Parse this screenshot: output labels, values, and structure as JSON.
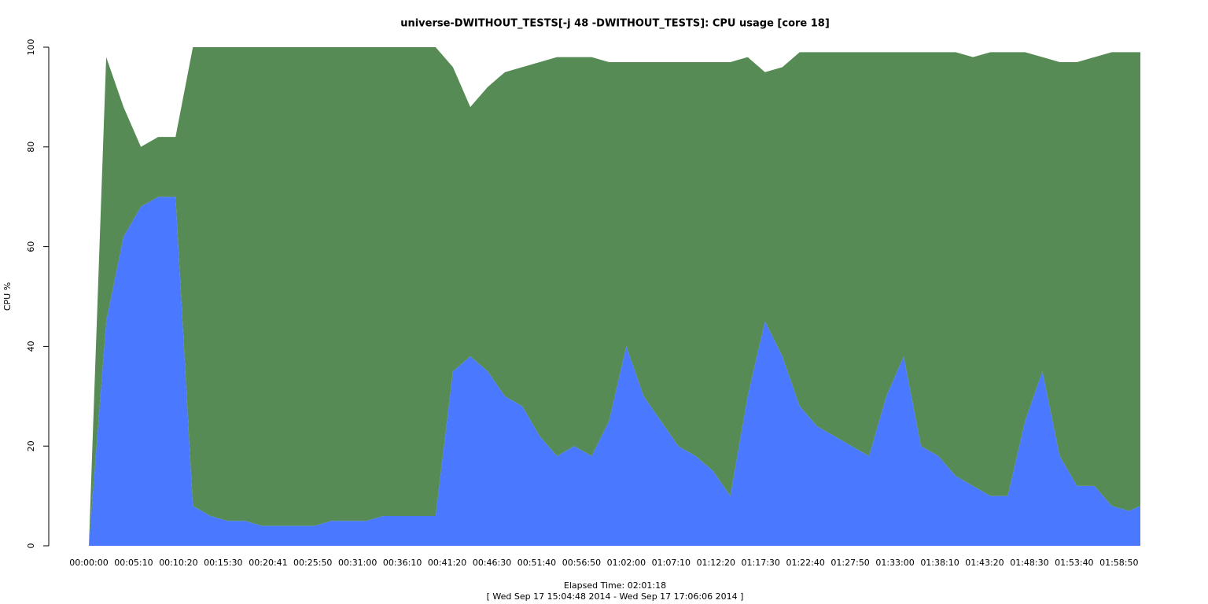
{
  "chart_data": {
    "type": "stacked-area",
    "title": "universe-DWITHOUT_TESTS[-j 48  -DWITHOUT_TESTS]: CPU usage [core 18]",
    "x_label": "Elapsed Time: 02:01:18",
    "subtitle": "[ Wed Sep 17 15:04:48 2014 - Wed Sep 17 17:06:06 2014 ]",
    "y_label": "CPU %",
    "x": [
      0,
      120,
      240,
      360,
      480,
      600,
      720,
      840,
      960,
      1080,
      1200,
      1320,
      1440,
      1560,
      1680,
      1800,
      1920,
      2040,
      2160,
      2280,
      2400,
      2520,
      2640,
      2760,
      2880,
      3000,
      3120,
      3240,
      3360,
      3480,
      3600,
      3720,
      3840,
      3960,
      4080,
      4200,
      4320,
      4440,
      4560,
      4680,
      4800,
      4920,
      5040,
      5160,
      5280,
      5400,
      5520,
      5640,
      5760,
      5880,
      6000,
      6120,
      6240,
      6360,
      6480,
      6600,
      6720,
      6840,
      6960,
      7080,
      7200,
      7278
    ],
    "series": [
      {
        "color": "#4a78ff",
        "values": [
          0,
          45,
          62,
          68,
          70,
          70,
          8,
          6,
          5,
          5,
          4,
          4,
          4,
          4,
          5,
          5,
          5,
          6,
          6,
          6,
          6,
          35,
          38,
          35,
          30,
          28,
          22,
          18,
          20,
          18,
          25,
          40,
          30,
          25,
          20,
          18,
          15,
          10,
          30,
          45,
          38,
          28,
          24,
          22,
          20,
          18,
          30,
          38,
          20,
          18,
          14,
          12,
          10,
          10,
          25,
          35,
          18,
          12,
          12,
          8,
          7,
          8
        ]
      },
      {
        "color": "#568b55",
        "values": [
          0,
          53,
          26,
          12,
          12,
          12,
          92,
          94,
          95,
          95,
          96,
          96,
          96,
          96,
          95,
          95,
          95,
          94,
          94,
          94,
          94,
          61,
          50,
          57,
          65,
          68,
          75,
          80,
          78,
          80,
          72,
          57,
          67,
          72,
          77,
          79,
          82,
          87,
          68,
          50,
          58,
          71,
          75,
          77,
          79,
          81,
          69,
          61,
          79,
          81,
          85,
          86,
          89,
          89,
          74,
          63,
          79,
          85,
          86,
          91,
          92,
          91
        ]
      }
    ],
    "xlim": [
      0,
      7278
    ],
    "xticks": [
      {
        "value": 0,
        "label": "00:00:00"
      },
      {
        "value": 310,
        "label": "00:05:10"
      },
      {
        "value": 620,
        "label": "00:10:20"
      },
      {
        "value": 930,
        "label": "00:15:30"
      },
      {
        "value": 1241,
        "label": "00:20:41"
      },
      {
        "value": 1550,
        "label": "00:25:50"
      },
      {
        "value": 1860,
        "label": "00:31:00"
      },
      {
        "value": 2170,
        "label": "00:36:10"
      },
      {
        "value": 2480,
        "label": "00:41:20"
      },
      {
        "value": 2790,
        "label": "00:46:30"
      },
      {
        "value": 3100,
        "label": "00:51:40"
      },
      {
        "value": 3410,
        "label": "00:56:50"
      },
      {
        "value": 3720,
        "label": "01:02:00"
      },
      {
        "value": 4030,
        "label": "01:07:10"
      },
      {
        "value": 4340,
        "label": "01:12:20"
      },
      {
        "value": 4650,
        "label": "01:17:30"
      },
      {
        "value": 4960,
        "label": "01:22:40"
      },
      {
        "value": 5270,
        "label": "01:27:50"
      },
      {
        "value": 5580,
        "label": "01:33:00"
      },
      {
        "value": 5890,
        "label": "01:38:10"
      },
      {
        "value": 6200,
        "label": "01:43:20"
      },
      {
        "value": 6510,
        "label": "01:48:30"
      },
      {
        "value": 6820,
        "label": "01:53:40"
      },
      {
        "value": 7130,
        "label": "01:58:50"
      }
    ],
    "ylim": [
      0,
      100
    ],
    "yticks": [
      0,
      20,
      40,
      60,
      80,
      100
    ]
  }
}
